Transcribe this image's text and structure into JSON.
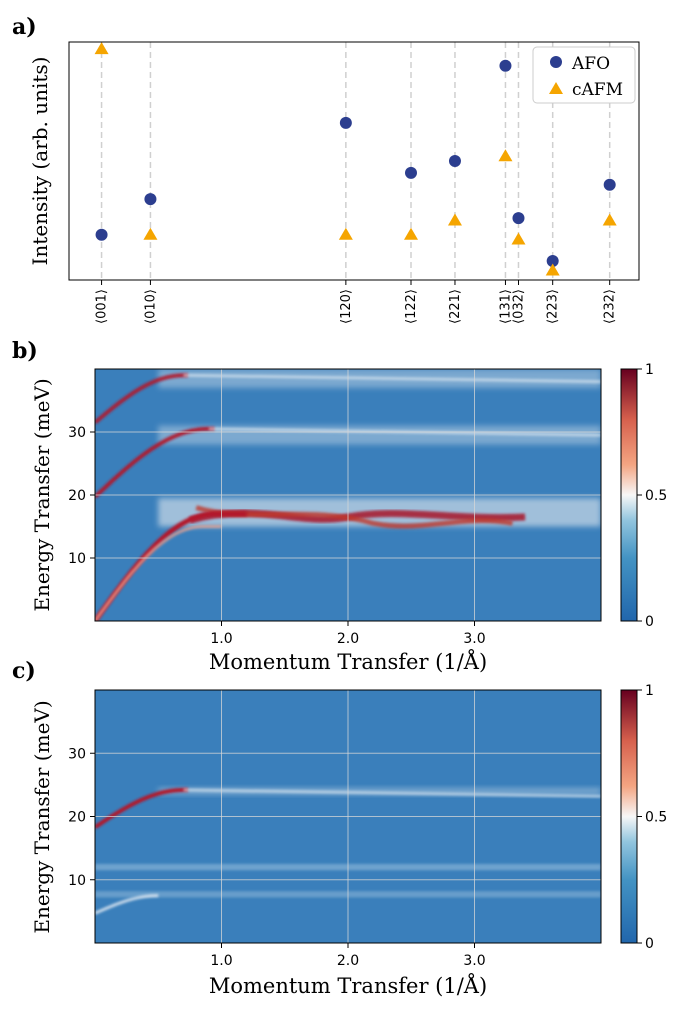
{
  "chart_data": [
    {
      "panel": "a)",
      "type": "scatter",
      "ylabel": "Intensity (arb. units)",
      "categories": [
        "⟨001⟩",
        "⟨010⟩",
        "⟨120⟩",
        "⟨122⟩",
        "⟨221⟩",
        "⟨131⟩",
        "⟨032⟩",
        "⟨223⟩",
        "⟨232⟩"
      ],
      "x_positions": [
        0.0,
        0.3,
        1.5,
        1.9,
        2.17,
        2.48,
        2.56,
        2.77,
        3.12
      ],
      "xlim": [
        -0.2,
        3.3
      ],
      "ylim": [
        0,
        1
      ],
      "legend_position": "top-right",
      "grid": "vertical dashed at categories",
      "series": [
        {
          "name": "AFO",
          "marker": "circle",
          "color": "#2c3e8f",
          "values": [
            0.19,
            0.34,
            0.66,
            0.45,
            0.5,
            0.9,
            0.26,
            0.08,
            0.4
          ]
        },
        {
          "name": "cAFM",
          "marker": "triangle",
          "color": "#f5a500",
          "values": [
            0.97,
            0.19,
            0.19,
            0.19,
            0.25,
            0.52,
            0.17,
            0.04,
            0.25
          ]
        }
      ]
    },
    {
      "panel": "b)",
      "type": "heatmap",
      "xlabel": "Momentum Transfer (1/Å)",
      "ylabel": "Energy Transfer (meV)",
      "xlim": [
        0,
        4.0
      ],
      "ylim": [
        0,
        40
      ],
      "xticks": [
        "1.0",
        "2.0",
        "3.0"
      ],
      "xtick_values": [
        1.0,
        2.0,
        3.0
      ],
      "yticks": [
        "10",
        "20",
        "30"
      ],
      "ytick_values": [
        10,
        20,
        30
      ],
      "colorbar": {
        "ticks": [
          "0",
          "0.5",
          "1"
        ],
        "tick_values": [
          0,
          0.5,
          1
        ],
        "range": [
          0,
          1
        ]
      },
      "features": [
        {
          "kind": "acoustic",
          "e0": 0,
          "e_top": 17,
          "q_top": 0.95,
          "flat_band": [
            15,
            19.5
          ],
          "intensity": 1.0
        },
        {
          "kind": "optic",
          "e0": 19.7,
          "e_top": 30.5,
          "q_top": 0.9,
          "flat_band": [
            28,
            31
          ],
          "intensity": 0.75
        },
        {
          "kind": "optic",
          "e0": 31.5,
          "e_top": 39,
          "q_top": 0.7,
          "flat_band": [
            37,
            40
          ],
          "intensity": 0.7
        }
      ]
    },
    {
      "panel": "c)",
      "type": "heatmap",
      "xlabel": "Momentum Transfer (1/Å)",
      "ylabel": "Energy Transfer (meV)",
      "xlim": [
        0,
        4.0
      ],
      "ylim": [
        0,
        40
      ],
      "xticks": [
        "1.0",
        "2.0",
        "3.0"
      ],
      "xtick_values": [
        1.0,
        2.0,
        3.0
      ],
      "yticks": [
        "10",
        "20",
        "30"
      ],
      "ytick_values": [
        10,
        20,
        30
      ],
      "colorbar": {
        "ticks": [
          "0",
          "0.5",
          "1"
        ],
        "tick_values": [
          0,
          0.5,
          1
        ],
        "range": [
          0,
          1
        ]
      },
      "features": [
        {
          "kind": "optic",
          "e0": 18.3,
          "e_top": 24.2,
          "q_top": 0.7,
          "flat_band": [
            23.5,
            24.5
          ],
          "intensity": 0.9
        },
        {
          "kind": "flat",
          "energy": 12.0,
          "intensity": 0.35
        },
        {
          "kind": "flat",
          "energy": 7.7,
          "intensity": 0.3
        },
        {
          "kind": "curve",
          "e0": 4.7,
          "e_top": 7.5,
          "q_top": 0.5,
          "intensity": 0.5
        }
      ]
    }
  ]
}
